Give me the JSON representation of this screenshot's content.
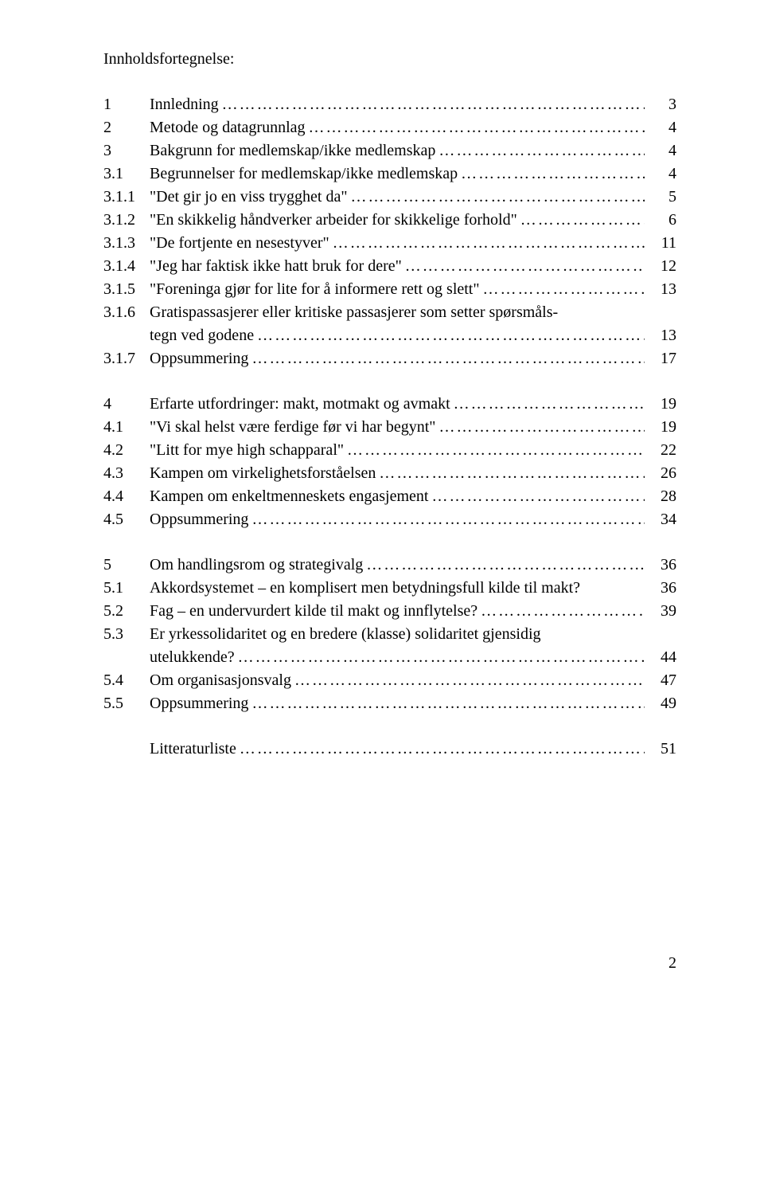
{
  "title": "Innholdsfortegnelse:",
  "sections": [
    {
      "rows": [
        {
          "num": "1",
          "label": "Innledning",
          "page": "3",
          "leader": true
        },
        {
          "num": "2",
          "label": "Metode og datagrunnlag",
          "page": "4",
          "leader": true
        },
        {
          "num": "3",
          "label": "Bakgrunn for medlemskap/ikke medlemskap",
          "page": "4",
          "leader": true
        },
        {
          "num": "3.1",
          "label": "Begrunnelser for medlemskap/ikke medlemskap",
          "page": "4",
          "leader": true
        },
        {
          "num": "3.1.1",
          "label": "\"Det gir jo en viss trygghet da\"",
          "page": "5",
          "leader": true
        },
        {
          "num": "3.1.2",
          "label": "\"En skikkelig håndverker arbeider for skikkelige forhold\"",
          "page": "6",
          "leader": true
        },
        {
          "num": "3.1.3",
          "label": "\"De fortjente en nesestyver\"",
          "page": "11",
          "leader": true
        },
        {
          "num": "3.1.4",
          "label": "\"Jeg har faktisk ikke hatt bruk for dere\"",
          "page": "12",
          "leader": true
        },
        {
          "num": "3.1.5",
          "label": "\"Foreninga gjør for lite for å informere rett og slett\"",
          "page": "13",
          "leader": true
        },
        {
          "num": "3.1.6",
          "label": "Gratispassasjerer eller kritiske passasjerer som setter spørsmåls-",
          "page": "",
          "leader": false
        },
        {
          "num": "",
          "label": "tegn ved godene",
          "page": "13",
          "leader": true,
          "continuation": true
        },
        {
          "num": "3.1.7",
          "label": "Oppsummering",
          "page": "17",
          "leader": true
        }
      ]
    },
    {
      "rows": [
        {
          "num": "4",
          "label": "Erfarte utfordringer: makt, motmakt og avmakt",
          "page": "19",
          "leader": true
        },
        {
          "num": "4.1",
          "label": "\"Vi skal helst være ferdige før vi har begynt\"",
          "page": "19",
          "leader": true
        },
        {
          "num": "4.2",
          "label": "\"Litt for mye high schapparal\"",
          "page": "22",
          "leader": true
        },
        {
          "num": "4.3",
          "label": "Kampen om virkelighetsforståelsen",
          "page": "26",
          "leader": true
        },
        {
          "num": "4.4",
          "label": "Kampen om enkeltmenneskets engasjement",
          "page": "28",
          "leader": true
        },
        {
          "num": "4.5",
          "label": "Oppsummering",
          "page": "34",
          "leader": true
        }
      ]
    },
    {
      "rows": [
        {
          "num": "5",
          "label": "Om handlingsrom og strategivalg",
          "page": "36",
          "leader": true
        },
        {
          "num": "5.1",
          "label": "Akkordsystemet – en komplisert men betydningsfull kilde til makt?",
          "page": "36",
          "leader": false
        },
        {
          "num": "5.2",
          "label": "Fag – en undervurdert kilde til makt og innflytelse?",
          "page": "39",
          "leader": true
        },
        {
          "num": "5.3",
          "label": "Er yrkessolidaritet og en bredere (klasse) solidaritet gjensidig",
          "page": "",
          "leader": false
        },
        {
          "num": "",
          "label": "utelukkende?",
          "page": "44",
          "leader": true,
          "continuation": true
        },
        {
          "num": "5.4",
          "label": "Om organisasjonsvalg",
          "page": "47",
          "leader": true
        },
        {
          "num": "5.5",
          "label": "Oppsummering",
          "page": "49",
          "leader": true
        }
      ]
    },
    {
      "rows": [
        {
          "num": "",
          "label": "Litteraturliste",
          "page": "51",
          "leader": true,
          "continuation": true
        }
      ]
    }
  ],
  "footerPage": "2",
  "dots": "…………………………………………………………………………………………………"
}
